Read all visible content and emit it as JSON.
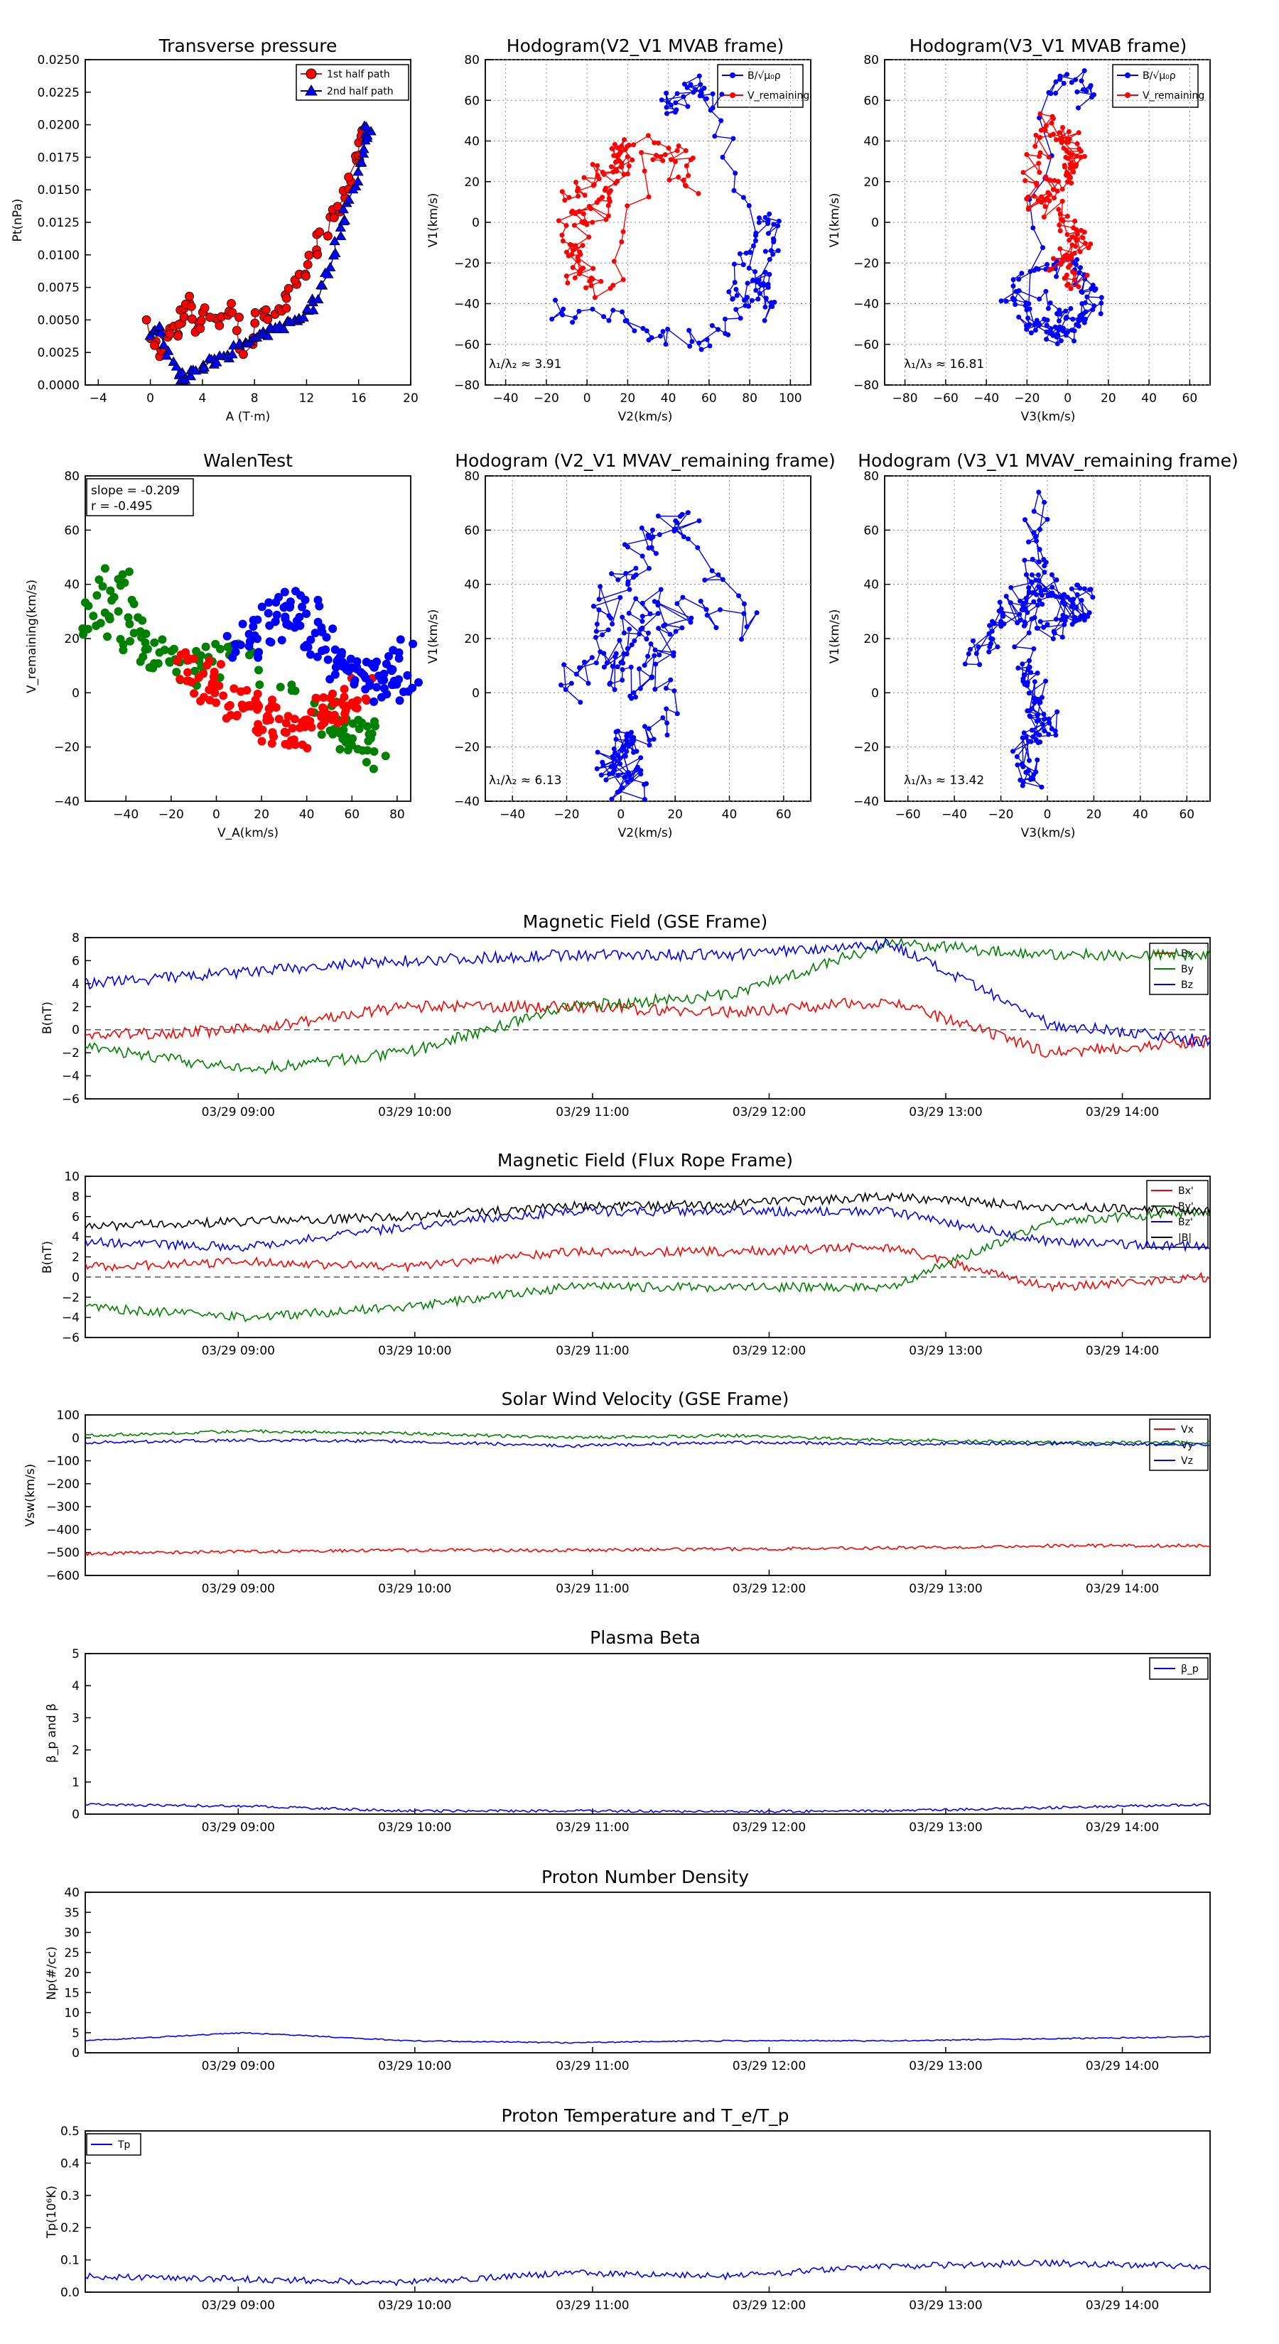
{
  "colors": {
    "red": "#ff0000",
    "blue": "#0000ff",
    "green": "#008000",
    "black": "#000000",
    "navy": "#00008b",
    "darkred": "#b22222"
  },
  "hodo_panels": {
    "pt": {
      "title": "Transverse pressure",
      "xlabel": "A (T·m)",
      "ylabel": "Pt(nPa)",
      "xticks": [
        "−4",
        "0",
        "4",
        "8",
        "12",
        "16",
        "20"
      ],
      "yticks": [
        "0.0000",
        "0.0025",
        "0.0050",
        "0.0075",
        "0.0100",
        "0.0125",
        "0.0150",
        "0.0175",
        "0.0200",
        "0.0225",
        "0.0250"
      ],
      "legend": [
        "1st half path",
        "2nd half path"
      ]
    },
    "h1": {
      "title": "Hodogram(V2_V1 MVAB frame)",
      "xlabel": "V2(km/s)",
      "ylabel": "V1(km/s)",
      "xticks": [
        "−40",
        "−20",
        "0",
        "20",
        "40",
        "60",
        "80",
        "100"
      ],
      "yticks": [
        "−80",
        "−60",
        "−40",
        "−20",
        "0",
        "20",
        "40",
        "60",
        "80"
      ],
      "ratio": "λ₁/λ₂ ≈ 3.91",
      "legend": [
        "B/√μ₀ρ",
        "V_remaining"
      ]
    },
    "h2": {
      "title": "Hodogram(V3_V1 MVAB frame)",
      "xlabel": "V3(km/s)",
      "ylabel": "V1(km/s)",
      "xticks": [
        "−80",
        "−60",
        "−40",
        "−20",
        "0",
        "20",
        "40",
        "60"
      ],
      "yticks": [
        "−80",
        "−60",
        "−40",
        "−20",
        "0",
        "20",
        "40",
        "60",
        "80"
      ],
      "ratio": "λ₁/λ₃ ≈ 16.81",
      "legend": [
        "B/√μ₀ρ",
        "V_remaining"
      ]
    },
    "walen": {
      "title": "WalenTest",
      "xlabel": "V_A(km/s)",
      "ylabel": "V_remaining(km/s)",
      "xticks": [
        "−40",
        "−20",
        "0",
        "20",
        "40",
        "60",
        "80"
      ],
      "yticks": [
        "−40",
        "−20",
        "0",
        "20",
        "40",
        "60",
        "80"
      ],
      "slope": "slope = -0.209",
      "r": "r = -0.495"
    },
    "h3": {
      "title": "Hodogram (V2_V1 MVAV_remaining frame)",
      "xlabel": "V2(km/s)",
      "ylabel": "V1(km/s)",
      "xticks": [
        "−40",
        "−20",
        "0",
        "20",
        "40",
        "60"
      ],
      "yticks": [
        "−40",
        "−20",
        "0",
        "20",
        "40",
        "60",
        "80"
      ],
      "ratio": "λ₁/λ₂ ≈ 6.13"
    },
    "h4": {
      "title": "Hodogram (V3_V1 MVAV_remaining frame)",
      "xlabel": "V3(km/s)",
      "ylabel": "V1(km/s)",
      "xticks": [
        "−60",
        "−40",
        "−20",
        "0",
        "20",
        "40",
        "60"
      ],
      "yticks": [
        "−40",
        "−20",
        "0",
        "20",
        "40",
        "60",
        "80"
      ],
      "ratio": "λ₁/λ₃ ≈ 13.42"
    }
  },
  "time_axis": [
    "03/29 09:00",
    "03/29 10:00",
    "03/29 11:00",
    "03/29 12:00",
    "03/29 13:00",
    "03/29 14:00"
  ],
  "ts_panels": {
    "mag_gse": {
      "title": "Magnetic Field (GSE Frame)",
      "ylabel": "B(nT)",
      "yticks": [
        "−6",
        "−4",
        "−2",
        "0",
        "2",
        "4",
        "6",
        "8"
      ],
      "legend": [
        "Bx",
        "By",
        "Bz"
      ]
    },
    "mag_fr": {
      "title": "Magnetic Field (Flux Rope Frame)",
      "ylabel": "B(nT)",
      "yticks": [
        "−6",
        "−4",
        "−2",
        "0",
        "2",
        "4",
        "6",
        "8",
        "10"
      ],
      "legend": [
        "Bx'",
        "By'",
        "Bz'",
        "|B|"
      ]
    },
    "vsw": {
      "title": "Solar Wind Velocity (GSE Frame)",
      "ylabel": "Vsw(km/s)",
      "yticks": [
        "−600",
        "−500",
        "−400",
        "−300",
        "−200",
        "−100",
        "0",
        "100"
      ],
      "legend": [
        "Vx",
        "Vy",
        "Vz"
      ]
    },
    "beta": {
      "title": "Plasma Beta",
      "ylabel": "β_p and β",
      "yticks": [
        "0",
        "1",
        "2",
        "3",
        "4",
        "5"
      ],
      "legend": [
        "β_p"
      ]
    },
    "np": {
      "title": "Proton Number Density",
      "ylabel": "Np(#/cc)",
      "yticks": [
        "0",
        "5",
        "10",
        "15",
        "20",
        "25",
        "30",
        "35",
        "40"
      ]
    },
    "tp": {
      "title": "Proton Temperature and T_e/T_p",
      "ylabel": "Tp(10⁶K)",
      "yticks": [
        "0.0",
        "0.1",
        "0.2",
        "0.3",
        "0.4",
        "0.5"
      ],
      "legend": [
        "Tp"
      ]
    }
  },
  "chart_data": [
    {
      "type": "scatter",
      "title": "Transverse pressure",
      "xlabel": "A (T·m)",
      "ylabel": "Pt(nPa)",
      "xlim": [
        -5,
        20
      ],
      "ylim": [
        0,
        0.025
      ],
      "series": [
        {
          "name": "1st half path",
          "x": [
            0,
            0.6,
            1.3,
            2,
            2.5,
            3,
            3.6,
            4.2,
            5.2,
            6.2,
            7.2,
            8.2,
            9,
            10,
            11,
            12,
            12.8,
            13.6,
            14.4,
            15.2,
            15.8,
            16.2
          ],
          "y": [
            0.0045,
            0.002,
            0.0045,
            0.0035,
            0.006,
            0.0065,
            0.004,
            0.006,
            0.0045,
            0.0065,
            0.0025,
            0.005,
            0.0055,
            0.006,
            0.007,
            0.0085,
            0.0105,
            0.0125,
            0.0135,
            0.0155,
            0.0175,
            0.0195
          ]
        },
        {
          "name": "2nd half path",
          "x": [
            0,
            0.8,
            1.6,
            2.5,
            3.4,
            4.3,
            5.2,
            6.1,
            7,
            8,
            9,
            10,
            11,
            12,
            13,
            13.8,
            14.6,
            15.4,
            16,
            16.4,
            16.8
          ],
          "y": [
            0.004,
            0.0045,
            0.0015,
            0.0005,
            0.001,
            0.0015,
            0.002,
            0.0025,
            0.003,
            0.0035,
            0.004,
            0.0045,
            0.005,
            0.0055,
            0.007,
            0.0095,
            0.012,
            0.0145,
            0.017,
            0.019,
            0.02
          ]
        }
      ]
    },
    {
      "type": "line",
      "title": "Hodogram(V2_V1 MVAB frame)",
      "xlabel": "V2(km/s)",
      "ylabel": "V1(km/s)",
      "xlim": [
        -50,
        110
      ],
      "ylim": [
        -80,
        80
      ],
      "series": [
        {
          "name": "B/√μ₀ρ",
          "x": [
            -20,
            0,
            20,
            40,
            55,
            70,
            80,
            90,
            92,
            88,
            80,
            70,
            85,
            90,
            82,
            75,
            60,
            45,
            40,
            52,
            62
          ],
          "y": [
            -42,
            -45,
            -50,
            -55,
            -58,
            -52,
            -35,
            -20,
            -5,
            5,
            -15,
            -40,
            -25,
            -45,
            -30,
            20,
            65,
            62,
            55,
            70,
            58
          ]
        },
        {
          "name": "V_remaining",
          "x": [
            -10,
            0,
            10,
            20,
            15,
            5,
            -10,
            -5,
            0,
            10,
            30,
            45,
            55,
            25,
            15,
            5,
            -5,
            -8
          ],
          "y": [
            10,
            20,
            30,
            40,
            25,
            10,
            0,
            -15,
            -25,
            -35,
            30,
            35,
            15,
            45,
            20,
            5,
            -10,
            -30
          ]
        }
      ]
    },
    {
      "type": "line",
      "title": "Hodogram(V3_V1 MVAB frame)",
      "xlabel": "V3(km/s)",
      "ylabel": "V1(km/s)",
      "xlim": [
        -95,
        65
      ],
      "ylim": [
        -80,
        80
      ],
      "series": [
        {
          "name": "B/√μ₀ρ",
          "x": [
            -30,
            -20,
            -10,
            0,
            10,
            5,
            -5,
            -20,
            -35,
            -15,
            0,
            -10,
            -25,
            -15,
            0,
            5
          ],
          "y": [
            -45,
            -50,
            -55,
            -48,
            -40,
            -30,
            -20,
            -25,
            -35,
            -40,
            -50,
            -58,
            -45,
            65,
            70,
            60
          ]
        },
        {
          "name": "V_remaining",
          "x": [
            -20,
            -10,
            0,
            -5,
            -15,
            -25,
            -5,
            5,
            -10,
            0
          ],
          "y": [
            10,
            20,
            30,
            40,
            50,
            15,
            0,
            -10,
            -20,
            -30
          ]
        }
      ]
    },
    {
      "type": "scatter",
      "title": "WalenTest",
      "xlabel": "V_A(km/s)",
      "ylabel": "V_remaining(km/s)",
      "xlim": [
        -58,
        86
      ],
      "ylim": [
        -53,
        86
      ],
      "annotations": [
        "slope = -0.209",
        "r = -0.495"
      ],
      "series": [
        {
          "name": "",
          "color": "#008000",
          "x": [
            -55,
            -50,
            -45,
            -40,
            -35,
            -30,
            -20,
            -10,
            0,
            10,
            50,
            55,
            60,
            65,
            70
          ],
          "y": [
            20,
            30,
            40,
            25,
            15,
            10,
            5,
            0,
            10,
            5,
            -15,
            -20,
            -30,
            -25,
            -35
          ]
        },
        {
          "name": "",
          "color": "#ff0000",
          "x": [
            -15,
            -5,
            5,
            15,
            25,
            35,
            45,
            55,
            65
          ],
          "y": [
            5,
            0,
            -10,
            -15,
            -20,
            -25,
            -15,
            -10,
            -5
          ]
        },
        {
          "name": "",
          "color": "#0000ff",
          "x": [
            10,
            20,
            30,
            40,
            50,
            60,
            70,
            80,
            85
          ],
          "y": [
            15,
            20,
            30,
            25,
            10,
            5,
            0,
            -5,
            10
          ]
        }
      ]
    },
    {
      "type": "line",
      "title": "Hodogram (V2_V1 MVAV_remaining frame)",
      "xlabel": "V2(km/s)",
      "ylabel": "V1(km/s)",
      "xlim": [
        -50,
        70
      ],
      "ylim": [
        -40,
        80
      ],
      "series": [
        {
          "name": "",
          "x": [
            -20,
            -10,
            0,
            10,
            20,
            45,
            10,
            5,
            -5,
            10,
            20,
            15,
            0,
            -5,
            5,
            0,
            -5
          ],
          "y": [
            0,
            20,
            40,
            55,
            65,
            25,
            35,
            20,
            10,
            0,
            30,
            -10,
            -20,
            -30,
            -35,
            -15,
            -25
          ]
        }
      ]
    },
    {
      "type": "line",
      "title": "Hodogram (V3_V1 MVAV_remaining frame)",
      "xlabel": "V3(km/s)",
      "ylabel": "V1(km/s)",
      "xlim": [
        -65,
        65
      ],
      "ylim": [
        -40,
        80
      ],
      "series": [
        {
          "name": "",
          "x": [
            -30,
            -20,
            -10,
            0,
            10,
            15,
            0,
            -5,
            -10,
            -5,
            0,
            -10,
            -5
          ],
          "y": [
            15,
            25,
            35,
            40,
            30,
            35,
            20,
            70,
            10,
            0,
            -10,
            -20,
            -35
          ]
        }
      ]
    },
    {
      "type": "line",
      "title": "Magnetic Field (GSE Frame)",
      "ylabel": "B(nT)",
      "ylim": [
        -6,
        8
      ],
      "x": [
        "08:00",
        "09:00",
        "10:00",
        "11:00",
        "12:00",
        "13:00",
        "14:00",
        "14:40"
      ],
      "series": [
        {
          "name": "Bx",
          "values": [
            -0.5,
            0,
            2,
            2,
            1.5,
            2.5,
            -2,
            -1
          ]
        },
        {
          "name": "By",
          "values": [
            -1.5,
            -3.5,
            -2,
            2,
            3,
            7.5,
            6.5,
            6.5
          ]
        },
        {
          "name": "Bz",
          "values": [
            4,
            5,
            6,
            6.5,
            6.5,
            7.5,
            0.5,
            -1
          ]
        }
      ]
    },
    {
      "type": "line",
      "title": "Magnetic Field (Flux Rope Frame)",
      "ylabel": "B(nT)",
      "ylim": [
        -6,
        10
      ],
      "x": [
        "08:00",
        "09:00",
        "10:00",
        "11:00",
        "12:00",
        "13:00",
        "14:00",
        "14:40"
      ],
      "series": [
        {
          "name": "Bx'",
          "values": [
            1,
            1.5,
            1,
            2.5,
            2.5,
            3,
            -1,
            0
          ]
        },
        {
          "name": "By'",
          "values": [
            -3,
            -4,
            -3,
            -1,
            -1,
            -1,
            5.5,
            6.5
          ]
        },
        {
          "name": "Bz'",
          "values": [
            3.5,
            3,
            5,
            6.5,
            6.5,
            6.5,
            3.5,
            3
          ]
        },
        {
          "name": "|B|",
          "values": [
            5,
            5.5,
            6,
            7,
            7.2,
            8,
            7,
            6.5
          ]
        }
      ]
    },
    {
      "type": "line",
      "title": "Solar Wind Velocity (GSE Frame)",
      "ylabel": "Vsw(km/s)",
      "ylim": [
        -600,
        100
      ],
      "x": [
        "08:00",
        "09:00",
        "10:00",
        "11:00",
        "12:00",
        "13:00",
        "14:00",
        "14:40"
      ],
      "series": [
        {
          "name": "Vx",
          "values": [
            -505,
            -495,
            -490,
            -490,
            -485,
            -480,
            -470,
            -470
          ]
        },
        {
          "name": "Vy",
          "values": [
            10,
            30,
            20,
            0,
            10,
            -10,
            -20,
            -20
          ]
        },
        {
          "name": "Vz",
          "values": [
            -20,
            -10,
            -15,
            -35,
            -20,
            -25,
            -25,
            -30
          ]
        }
      ]
    },
    {
      "type": "line",
      "title": "Plasma Beta",
      "ylabel": "β_p and β",
      "ylim": [
        0,
        5
      ],
      "x": [
        "08:00",
        "09:00",
        "10:00",
        "11:00",
        "12:00",
        "13:00",
        "14:00",
        "14:40"
      ],
      "series": [
        {
          "name": "β_p",
          "values": [
            0.3,
            0.25,
            0.1,
            0.1,
            0.08,
            0.1,
            0.2,
            0.3
          ]
        }
      ]
    },
    {
      "type": "line",
      "title": "Proton Number Density",
      "ylabel": "Np(#/cc)",
      "ylim": [
        0,
        40
      ],
      "x": [
        "08:00",
        "09:00",
        "10:00",
        "11:00",
        "12:00",
        "13:00",
        "14:00",
        "14:40"
      ],
      "series": [
        {
          "name": "",
          "values": [
            3,
            5,
            3,
            2.5,
            3,
            3,
            3.5,
            4
          ]
        }
      ]
    },
    {
      "type": "line",
      "title": "Proton Temperature and T_e/T_p",
      "ylabel": "Tp(10⁶K)",
      "ylim": [
        0,
        0.5
      ],
      "x": [
        "08:00",
        "09:00",
        "10:00",
        "11:00",
        "12:00",
        "13:00",
        "14:00",
        "14:40"
      ],
      "series": [
        {
          "name": "Tp",
          "values": [
            0.05,
            0.04,
            0.03,
            0.06,
            0.05,
            0.08,
            0.09,
            0.08
          ]
        }
      ]
    }
  ]
}
